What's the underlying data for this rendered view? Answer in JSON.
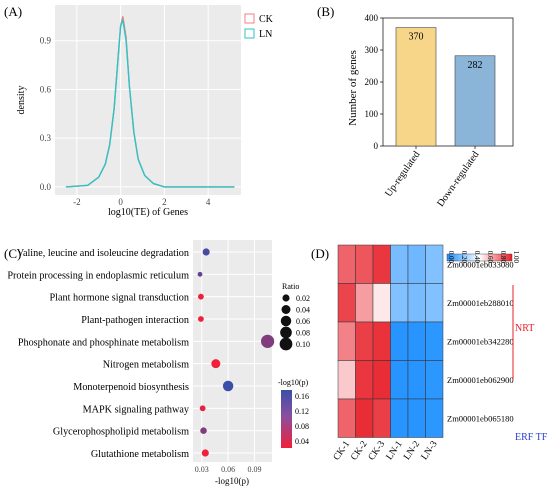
{
  "panel_labels": [
    "(A)",
    "(B)",
    "(C)",
    "(D)"
  ],
  "colors": {
    "ck": "#f08080",
    "ln": "#2ec4c4",
    "up_bar": "#f7d68a",
    "down_bar": "#8ab4d8",
    "panel_bg": "#ebebeb",
    "nrt": "#e8202a",
    "erf": "#2a3fd4"
  },
  "chart_data": [
    {
      "id": "A",
      "type": "line",
      "xlabel": "log10(TE) of Genes",
      "ylabel": "density",
      "xlim": [
        -3,
        5.5
      ],
      "ylim": [
        -0.05,
        1.12
      ],
      "x_ticks": [
        -2,
        0,
        2,
        4
      ],
      "y_ticks": [
        0.0,
        0.3,
        0.6,
        0.9
      ],
      "y_tick_labels": [
        "0.0",
        "0.3",
        "0.6",
        "0.9"
      ],
      "grid": true,
      "legend": "top-right",
      "series": [
        {
          "name": "CK",
          "x": [
            -2.5,
            -1.5,
            -1.0,
            -0.7,
            -0.5,
            -0.3,
            -0.15,
            0.0,
            0.1,
            0.25,
            0.4,
            0.6,
            0.8,
            1.1,
            1.5,
            2.0,
            3.0,
            5.2
          ],
          "y": [
            0.0,
            0.01,
            0.06,
            0.14,
            0.26,
            0.48,
            0.74,
            0.99,
            1.05,
            0.92,
            0.62,
            0.34,
            0.17,
            0.07,
            0.02,
            0.0,
            0.0,
            0.0
          ]
        },
        {
          "name": "LN",
          "x": [
            -2.5,
            -1.5,
            -1.0,
            -0.7,
            -0.5,
            -0.3,
            -0.15,
            0.0,
            0.1,
            0.25,
            0.4,
            0.6,
            0.8,
            1.1,
            1.5,
            2.0,
            3.0,
            5.2
          ],
          "y": [
            0.0,
            0.01,
            0.06,
            0.14,
            0.26,
            0.48,
            0.74,
            0.99,
            1.03,
            0.9,
            0.62,
            0.34,
            0.17,
            0.07,
            0.02,
            0.0,
            0.0,
            0.0
          ]
        }
      ]
    },
    {
      "id": "B",
      "type": "bar",
      "categories": [
        "Up-regulated",
        "Down-regulated"
      ],
      "values": [
        370,
        282
      ],
      "ylabel": "Number of genes",
      "ylim": [
        0,
        400
      ],
      "y_ticks": [
        0,
        100,
        200,
        300,
        400
      ]
    },
    {
      "id": "C",
      "type": "scatter",
      "categories": [
        "Valine, leucine and isoleucine degradation",
        "Protein processing in endoplasmic reticulum",
        "Plant hormone signal transduction",
        "Plant-pathogen interaction",
        "Phosphonate and phosphinate metabolism",
        "Nitrogen metabolism",
        "Monoterpenoid biosynthesis",
        "MAPK signaling pathway",
        "Glycerophospholipid metabolism",
        "Glutathione metabolism"
      ],
      "x": [
        0.035,
        0.028,
        0.029,
        0.029,
        0.105,
        0.046,
        0.06,
        0.031,
        0.032,
        0.034
      ],
      "ratio": [
        0.02,
        0.005,
        0.01,
        0.01,
        0.11,
        0.04,
        0.06,
        0.01,
        0.015,
        0.02
      ],
      "pvalue": [
        0.16,
        0.14,
        0.04,
        0.04,
        0.12,
        0.04,
        0.17,
        0.05,
        0.12,
        0.04
      ],
      "xlabel": "-log10(p)",
      "xlim": [
        0.02,
        0.11
      ],
      "x_ticks": [
        0.03,
        0.06,
        0.09
      ],
      "legend_ratio_title": "Ratio",
      "legend_ratio_values": [
        "0.02",
        "0.04",
        "0.06",
        "0.08",
        "0.10"
      ],
      "legend_color_title": "-log10(p)",
      "legend_color_values": [
        "0.16",
        "0.12",
        "0.08",
        "0.04"
      ]
    },
    {
      "id": "D",
      "type": "heatmap",
      "rows": [
        "Zm00001eb033080",
        "Zm00001eb288010",
        "Zm00001eb342280",
        "Zm00001eb062900",
        "Zm00001eb065180"
      ],
      "columns": [
        "CK-1",
        "CK-2",
        "CK-3",
        "LN-1",
        "LN-2",
        "LN-3"
      ],
      "values": [
        [
          0.85,
          0.88,
          0.95,
          0.2,
          0.18,
          0.22
        ],
        [
          0.92,
          0.72,
          0.55,
          0.22,
          0.2,
          0.22
        ],
        [
          0.78,
          0.93,
          0.96,
          0.02,
          0.02,
          0.03
        ],
        [
          0.62,
          0.95,
          0.97,
          0.02,
          0.02,
          0.03
        ],
        [
          0.85,
          0.97,
          0.93,
          0.02,
          0.02,
          0.03
        ]
      ],
      "scale_ticks": [
        "0.00",
        "0.20",
        "0.40",
        "0.60",
        "0.80",
        "1.00"
      ],
      "group_labels": [
        "NRT",
        "ERF TF"
      ]
    }
  ]
}
